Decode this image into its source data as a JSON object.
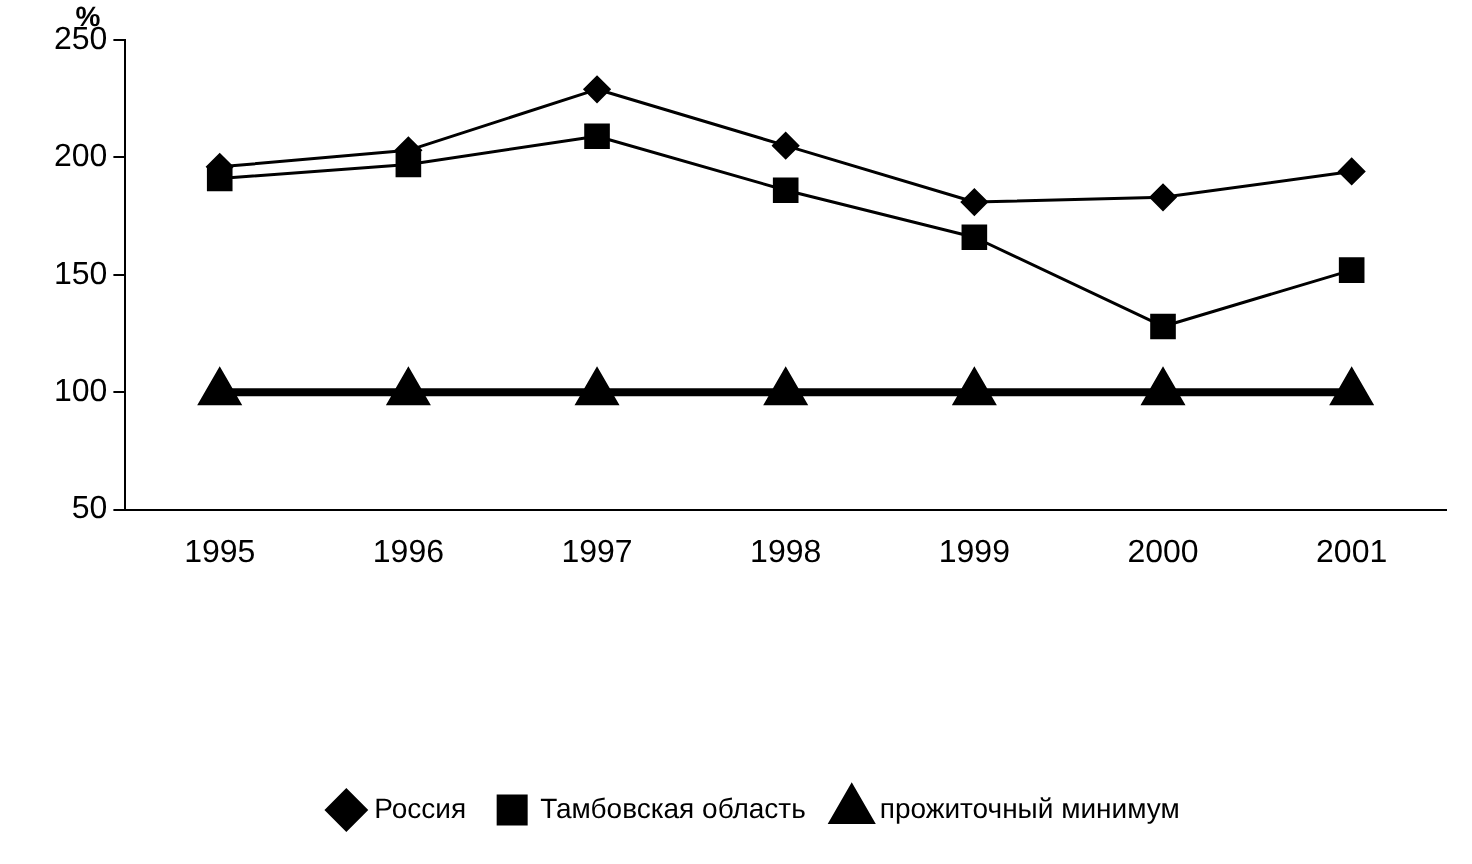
{
  "chart_data": {
    "type": "line",
    "ylabel": "%",
    "categories": [
      "1995",
      "1996",
      "1997",
      "1998",
      "1999",
      "2000",
      "2001"
    ],
    "series": [
      {
        "name": "Россия",
        "color": "#000000",
        "marker": "diamond",
        "values": [
          196,
          203,
          229,
          205,
          181,
          183,
          194
        ]
      },
      {
        "name": "Тамбовская область",
        "color": "#000000",
        "marker": "square",
        "values": [
          191,
          197,
          209,
          186,
          166,
          128,
          152
        ]
      },
      {
        "name": "прожиточный минимум",
        "color": "#000000",
        "marker": "triangle",
        "values": [
          100,
          100,
          100,
          100,
          100,
          100,
          100
        ]
      }
    ],
    "ylim": [
      50,
      250
    ],
    "yticks": [
      50,
      100,
      150,
      200,
      250
    ],
    "grid": false,
    "legend": "bottom"
  }
}
